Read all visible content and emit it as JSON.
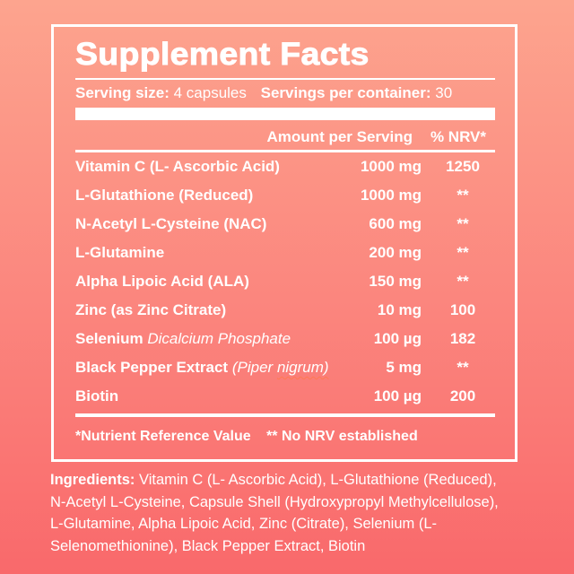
{
  "colors": {
    "background_top": "#fda48e",
    "background_bottom": "#f9696b",
    "text": "#ffffff",
    "spellcheck_squiggle": "#ff7a52"
  },
  "panel": {
    "title": "Supplement Facts",
    "serving": {
      "size_label": "Serving size:",
      "size_value": "4 capsules",
      "container_label": "Servings per container:",
      "container_value": "30"
    },
    "columns": {
      "amount": "Amount per Serving",
      "nrv": "% NRV*"
    },
    "rows": [
      {
        "name": "Vitamin C (L- Ascorbic Acid)",
        "amount": "1000 mg",
        "nrv": "1250"
      },
      {
        "name": "L-Glutathione (Reduced)",
        "amount": "1000 mg",
        "nrv": "**"
      },
      {
        "name": "N-Acetyl L-Cysteine (NAC)",
        "amount": "600 mg",
        "nrv": "**"
      },
      {
        "name": "L-Glutamine",
        "amount": "200 mg",
        "nrv": "**"
      },
      {
        "name": "Alpha Lipoic Acid (ALA)",
        "amount": "150 mg",
        "nrv": "**"
      },
      {
        "name": "Zinc (as Zinc Citrate)",
        "amount": "10 mg",
        "nrv": "100"
      },
      {
        "name": "Selenium",
        "name_italic": "Dicalcium Phosphate",
        "amount": "100 µg",
        "nrv": "182"
      },
      {
        "name": "Black Pepper Extract",
        "name_italic": "(Piper",
        "name_italic2": "nigrum)",
        "amount": "5 mg",
        "nrv": "**"
      },
      {
        "name": "Biotin",
        "amount": "100 µg",
        "nrv": "200"
      }
    ],
    "footnote_a": "*Nutrient Reference Value",
    "footnote_b": "** No NRV established"
  },
  "ingredients": {
    "label": "Ingredients:",
    "full_text": "Vitamin C (L- Ascorbic Acid), L-Glutathione (Reduced), N-Acetyl L-Cysteine, Capsule Shell (Hydroxypropyl Methylcellulose), L-Glutamine, Alpha Lipoic Acid, Zinc (Citrate), Selenium (L-Selenomethionine), Black Pepper Extract, Biotin",
    "lines": [
      "Vitamin C (L- Ascorbic Acid), L-Glutathione (Reduced),",
      "N-Acetyl L-Cysteine, Capsule Shell (Hydroxypropyl Methylcellulose),",
      "L-Glutamine, Alpha Lipoic Acid, Zinc (Citrate), Selenium (L-",
      "Selenomethionine), Black Pepper Extract, Biotin"
    ]
  }
}
